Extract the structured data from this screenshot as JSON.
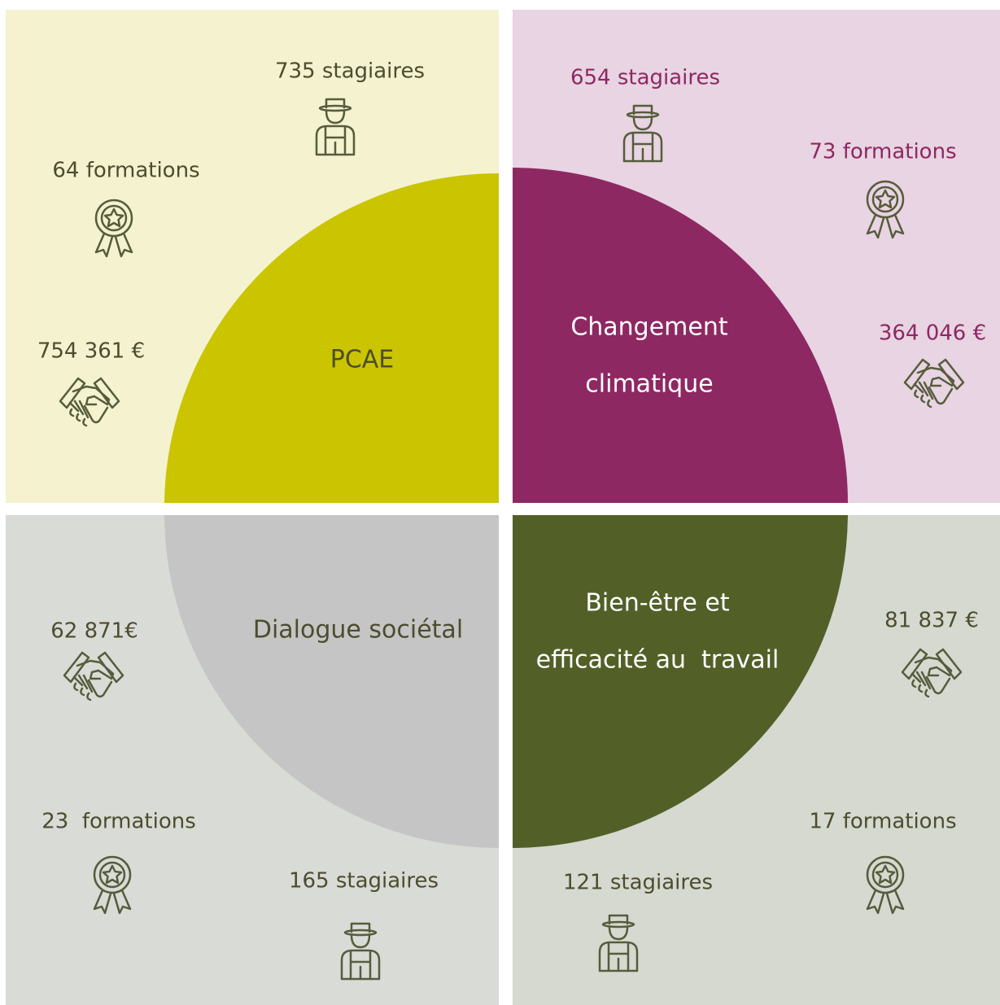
{
  "quadrants": [
    {
      "title_lines": [
        "PCAE"
      ],
      "stagiaires": "735 stagiaires",
      "formations": "64 formations",
      "budget": "754 361 €"
    },
    {
      "title_lines": [
        "Changement",
        "climatique"
      ],
      "stagiaires": "654 stagiaires",
      "formations": "73 formations",
      "budget": "364 046 €"
    },
    {
      "title_lines": [
        "Dialogue sociétal"
      ],
      "stagiaires": "165 stagiaires",
      "formations": "23  formations",
      "budget": "62 871€"
    },
    {
      "title_lines": [
        "Bien-être et",
        "efficacité au  travail"
      ],
      "stagiaires": "121 stagiaires",
      "formations": "17 formations",
      "budget": "81 837 €"
    }
  ]
}
